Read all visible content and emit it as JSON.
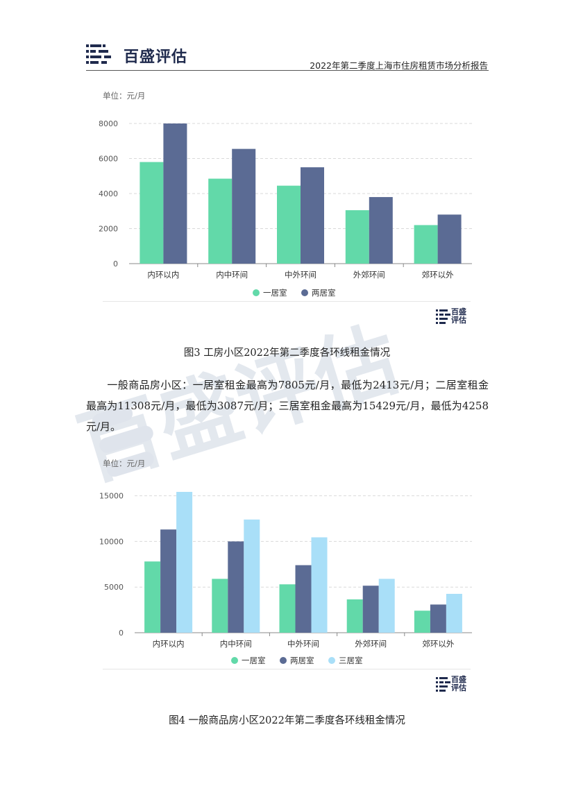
{
  "header": {
    "logo_text": "百盛评估",
    "report_title": "2022年第二季度上海市住房租赁市场分析报告"
  },
  "watermark": {
    "text": "百盛评估"
  },
  "colors": {
    "one_room": "#62d9a9",
    "two_room": "#5b6b94",
    "three_room": "#a9dff8",
    "brand_navy": "#1f2a4d"
  },
  "figure3": {
    "unit": "单位：元/月",
    "caption": "图3 工房小区2022年第二季度各环线租金情况",
    "small_logo_text": "百盛评估"
  },
  "paragraph": {
    "text": "一般商品房小区：一居室租金最高为7805元/月，最低为2413元/月；二居室租金最高为11308元/月，最低为3087元/月；三居室租金最高为15429元/月，最低为4258元/月。"
  },
  "figure4": {
    "unit": "单位：元/月",
    "caption": "图4 一般商品房小区2022年第二季度各环线租金情况",
    "small_logo_text": "百盛评估"
  },
  "chart_data": [
    {
      "type": "bar",
      "title": "",
      "categories": [
        "内环以内",
        "内中环间",
        "中外环间",
        "外郊环间",
        "郊环以外"
      ],
      "series": [
        {
          "name": "一居室",
          "values": [
            5800,
            4850,
            4450,
            3050,
            2200
          ]
        },
        {
          "name": "两居室",
          "values": [
            8000,
            6550,
            5500,
            3800,
            2800
          ]
        }
      ],
      "yticks": [
        "0",
        "2000",
        "4000",
        "6000",
        "8000"
      ],
      "ylim": [
        0,
        8000
      ],
      "grid": true,
      "legend": "bottom"
    },
    {
      "type": "bar",
      "title": "",
      "categories": [
        "内环以内",
        "内中环间",
        "中外环间",
        "外郊环间",
        "郊环以外"
      ],
      "series": [
        {
          "name": "一居室",
          "values": [
            7805,
            5900,
            5300,
            3650,
            2413
          ]
        },
        {
          "name": "两居室",
          "values": [
            11308,
            10000,
            7400,
            5150,
            3087
          ]
        },
        {
          "name": "三居室",
          "values": [
            15429,
            12400,
            10450,
            5900,
            4258
          ]
        }
      ],
      "yticks": [
        "0",
        "5000",
        "10000",
        "15000"
      ],
      "ylim": [
        0,
        15429
      ],
      "grid": true,
      "legend": "bottom"
    }
  ]
}
